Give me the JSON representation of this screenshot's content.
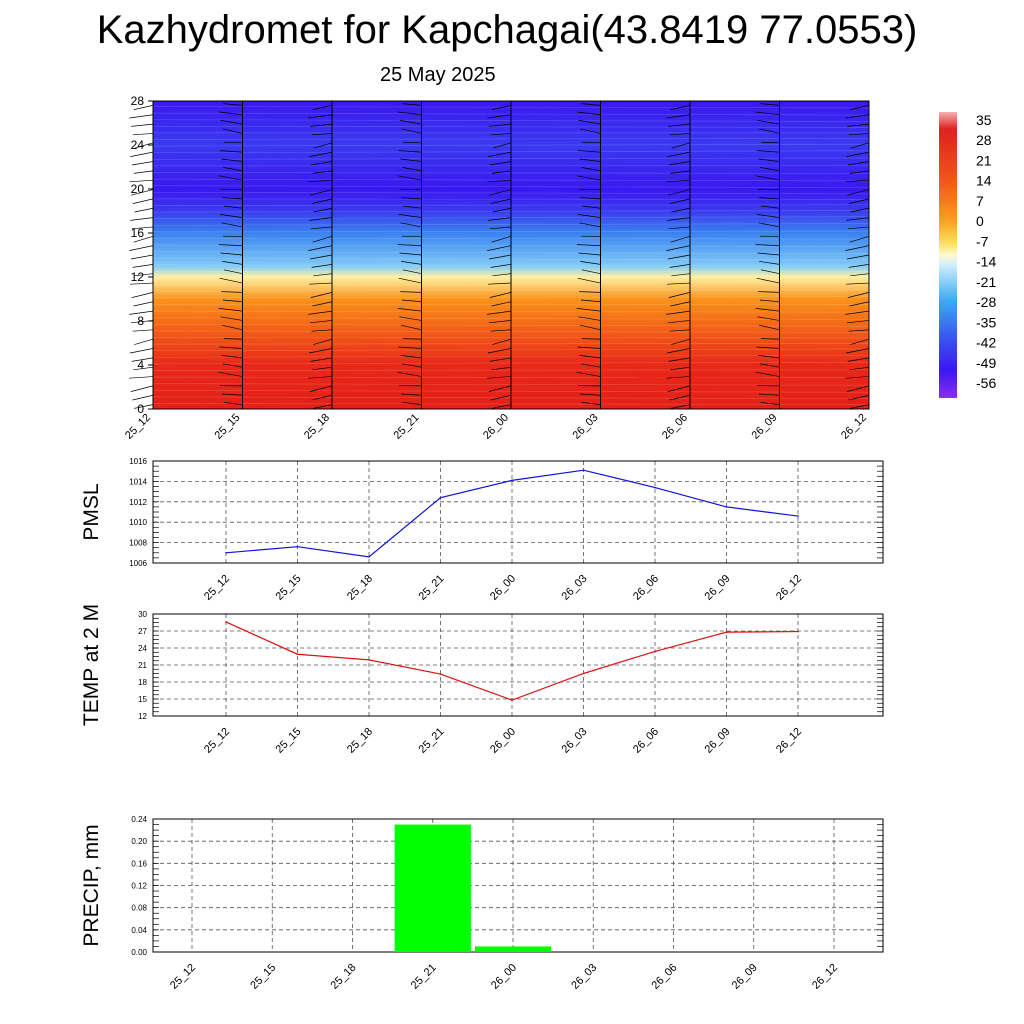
{
  "title": "Kazhydromet for Kapchagai(43.8419 77.0553)",
  "date": "25 May 2025",
  "colors": {
    "pmsl_line": "#1010e0",
    "temp_line": "#e01010",
    "precip_bar": "#00ff00",
    "grid": "#555555"
  },
  "chart_data": [
    {
      "type": "heatmap",
      "name_hint": "",
      "x_tick_labels": [
        "25_12",
        "25_15",
        "25_18",
        "25_21",
        "26_00",
        "26_03",
        "26_06",
        "26_09",
        "26_12"
      ],
      "y_ticks": [
        0,
        4,
        8,
        12,
        16,
        20,
        24,
        28
      ],
      "ylim": [
        0,
        28
      ],
      "colorbar_labels": [
        "35",
        "28",
        "21",
        "14",
        "7",
        "0",
        "-7",
        "-14",
        "-21",
        "-28",
        "-35",
        "-42",
        "-49",
        "-56"
      ],
      "temperature_profile": [
        {
          "level": 0,
          "value": 28
        },
        {
          "level": 4,
          "value": 21
        },
        {
          "level": 8,
          "value": 10
        },
        {
          "level": 10,
          "value": 4
        },
        {
          "level": 12,
          "value": -7
        },
        {
          "level": 13,
          "value": -21
        },
        {
          "level": 16,
          "value": -35
        },
        {
          "level": 18,
          "value": -49
        },
        {
          "level": 20,
          "value": -56
        },
        {
          "level": 24,
          "value": -49
        },
        {
          "level": 28,
          "value": -56
        }
      ]
    },
    {
      "type": "line",
      "ylabel": "PMSL",
      "categories": [
        "25_12",
        "25_15",
        "25_18",
        "25_21",
        "26_00",
        "26_03",
        "26_06",
        "26_09",
        "26_12"
      ],
      "values": [
        1007.0,
        1007.6,
        1006.6,
        1012.4,
        1014.1,
        1015.1,
        1013.4,
        1011.5,
        1010.6
      ],
      "ylim": [
        1006,
        1016
      ],
      "y_ticks": [
        1006,
        1008,
        1010,
        1012,
        1014,
        1016
      ],
      "grid": true
    },
    {
      "type": "line",
      "ylabel": "TEMP at 2 M",
      "categories": [
        "25_12",
        "25_15",
        "25_18",
        "25_21",
        "26_00",
        "26_03",
        "26_06",
        "26_09",
        "26_12"
      ],
      "values": [
        28.6,
        22.9,
        21.9,
        19.4,
        14.8,
        19.5,
        23.4,
        26.8,
        26.9
      ],
      "ylim": [
        12,
        30
      ],
      "y_ticks": [
        12,
        15,
        18,
        21,
        24,
        27,
        30
      ],
      "grid": true
    },
    {
      "type": "bar",
      "ylabel": "PRECIP, mm",
      "categories": [
        "25_12",
        "25_15",
        "25_18",
        "25_21",
        "26_00",
        "26_03",
        "26_06",
        "26_09",
        "26_12"
      ],
      "values": [
        0,
        0,
        0,
        0.23,
        0.01,
        0,
        0,
        0,
        0
      ],
      "ylim": [
        0,
        0.24
      ],
      "y_tick_labels": [
        "0.00",
        "0.04",
        "0.08",
        "0.12",
        "0.16",
        "0.20",
        "0.24"
      ],
      "grid": true
    }
  ]
}
